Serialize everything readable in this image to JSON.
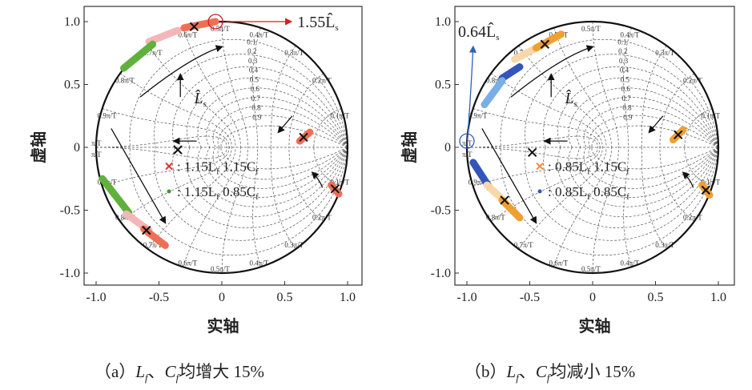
{
  "chart_data": [
    {
      "type": "scatter",
      "subtype": "z-plane pole locus",
      "caption_prefix": "（a）",
      "caption_vars": [
        "L",
        "f",
        "、",
        "C",
        "f"
      ],
      "caption_suffix": "均增大 15%",
      "xlabel": "实轴",
      "ylabel": "虚轴",
      "xlim": [
        -1.1,
        1.1
      ],
      "ylim": [
        -1.1,
        1.1
      ],
      "xticks": [
        "-1.0",
        "-0.5",
        "0",
        "0.5",
        "1.0"
      ],
      "yticks": [
        "1.0",
        "0.5",
        "0",
        "-0.5",
        "-1.0"
      ],
      "grid": true,
      "unit_circle": true,
      "damping_labels": [
        "0.1",
        "0.2",
        "0.3",
        "0.4",
        "0.5",
        "0.6",
        "0.7",
        "0.8",
        "0.9"
      ],
      "freq_labels": [
        "0.1π/T",
        "0.2π/T",
        "0.3π/T",
        "0.4π/T",
        "0.5π/T",
        "0.6π/T",
        "0.7π/T",
        "0.8π/T",
        "0.9π/T",
        "π/T"
      ],
      "nominal_poles": [
        [
          -0.22,
          0.96
        ],
        [
          0.65,
          0.08
        ],
        [
          0.9,
          -0.33
        ],
        [
          -0.35,
          -0.02
        ],
        [
          -0.6,
          -0.66
        ]
      ],
      "loci": [
        {
          "color": "#f4b6b8",
          "points": [
            [
              -0.58,
              0.84
            ],
            [
              -0.35,
              0.93
            ]
          ]
        },
        {
          "color": "#ef6f55",
          "points": [
            [
              -0.3,
              0.95
            ],
            [
              -0.05,
              1.0
            ]
          ]
        },
        {
          "color": "#5fb13c",
          "points": [
            [
              -0.78,
              0.63
            ],
            [
              -0.55,
              0.82
            ]
          ]
        },
        {
          "color": "#5fb13c",
          "points": [
            [
              -0.95,
              -0.25
            ],
            [
              -0.74,
              -0.52
            ]
          ]
        },
        {
          "color": "#f4b6b8",
          "points": [
            [
              -0.76,
              -0.53
            ],
            [
              -0.58,
              -0.66
            ]
          ]
        },
        {
          "color": "#ef6f55",
          "points": [
            [
              -0.62,
              -0.65
            ],
            [
              -0.45,
              -0.78
            ]
          ]
        },
        {
          "color": "#ef6f55",
          "points": [
            [
              0.62,
              0.05
            ],
            [
              0.7,
              0.12
            ]
          ]
        },
        {
          "color": "#ef6f55",
          "points": [
            [
              0.87,
              -0.3
            ],
            [
              0.93,
              -0.37
            ]
          ]
        }
      ],
      "legend": [
        {
          "marker": "x",
          "color": "#e03030",
          "label": "1.15L",
          "sub": "f",
          "label2": " 1.15C",
          "sub2": "f"
        },
        {
          "marker": "dot",
          "color": "#3d9a2a",
          "label": "1.15L",
          "sub": "f",
          "label2": " 0.85C",
          "sub2": "f"
        }
      ],
      "legend_position": "center",
      "annotations": [
        {
          "text": "1.55L̂",
          "sub": "s",
          "color": "#d02020",
          "target": [
            -0.05,
            1.0
          ]
        },
        {
          "text": "L̂",
          "sub": "s",
          "suffix": "↑"
        }
      ],
      "highlight_color": "#d02020"
    },
    {
      "type": "scatter",
      "subtype": "z-plane pole locus",
      "caption_prefix": "（b）",
      "caption_vars": [
        "L",
        "f",
        "、",
        "C",
        "f"
      ],
      "caption_suffix": "均减小 15%",
      "xlabel": "实轴",
      "ylabel": "虚轴",
      "xlim": [
        -1.1,
        1.1
      ],
      "ylim": [
        -1.1,
        1.1
      ],
      "xticks": [
        "-1.0",
        "-0.5",
        "0",
        "0.5",
        "1.0"
      ],
      "yticks": [
        "1.0",
        "0.5",
        "0",
        "-0.5",
        "-1.0"
      ],
      "grid": true,
      "unit_circle": true,
      "damping_labels": [
        "0.1",
        "0.2",
        "0.3",
        "0.4",
        "0.5",
        "0.6",
        "0.7",
        "0.8",
        "0.9"
      ],
      "freq_labels": [
        "0.1π/T",
        "0.2π/T",
        "0.3π/T",
        "0.4π/T",
        "0.5π/T",
        "0.6π/T",
        "0.7π/T",
        "0.8π/T",
        "0.9π/T",
        "π/T"
      ],
      "nominal_poles": [
        [
          -0.38,
          0.82
        ],
        [
          0.68,
          0.1
        ],
        [
          0.9,
          -0.34
        ],
        [
          -0.48,
          -0.04
        ],
        [
          -0.7,
          -0.42
        ]
      ],
      "loci": [
        {
          "color": "#f8d7a8",
          "points": [
            [
              -0.62,
              0.7
            ],
            [
              -0.45,
              0.79
            ]
          ]
        },
        {
          "color": "#f0a030",
          "points": [
            [
              -0.45,
              0.79
            ],
            [
              -0.25,
              0.9
            ]
          ]
        },
        {
          "color": "#3355bb",
          "points": [
            [
              -0.72,
              0.55
            ],
            [
              -0.58,
              0.64
            ]
          ]
        },
        {
          "color": "#79aee8",
          "points": [
            [
              -0.86,
              0.34
            ],
            [
              -0.72,
              0.53
            ]
          ]
        },
        {
          "color": "#3355bb",
          "points": [
            [
              -0.95,
              -0.12
            ],
            [
              -0.82,
              -0.32
            ]
          ]
        },
        {
          "color": "#f8d7a8",
          "points": [
            [
              -0.84,
              -0.3
            ],
            [
              -0.7,
              -0.43
            ]
          ]
        },
        {
          "color": "#f0a030",
          "points": [
            [
              -0.72,
              -0.42
            ],
            [
              -0.58,
              -0.56
            ]
          ]
        },
        {
          "color": "#f0a030",
          "points": [
            [
              0.64,
              0.06
            ],
            [
              0.72,
              0.14
            ]
          ]
        },
        {
          "color": "#f0a030",
          "points": [
            [
              0.87,
              -0.3
            ],
            [
              0.93,
              -0.38
            ]
          ]
        }
      ],
      "legend": [
        {
          "marker": "x",
          "color": "#f08a40",
          "label": "0.85L",
          "sub": "f",
          "label2": " 1.15C",
          "sub2": "f"
        },
        {
          "marker": "dot",
          "color": "#3355bb",
          "label": "0.85L",
          "sub": "f",
          "label2": " 0.85C",
          "sub2": "f"
        }
      ],
      "legend_position": "center",
      "annotations": [
        {
          "text": "0.64L̂",
          "sub": "s",
          "color": "#2f60b8",
          "target": [
            -1.0,
            0.05
          ]
        },
        {
          "text": "L̂",
          "sub": "s",
          "suffix": "↑"
        }
      ],
      "highlight_color": "#2f60b8"
    }
  ]
}
